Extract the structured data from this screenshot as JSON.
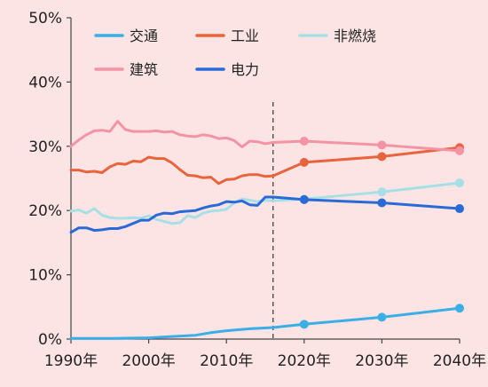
{
  "chart_data": {
    "type": "line",
    "title": "",
    "xlabel": "",
    "ylabel": "",
    "xlim": [
      1990,
      2040
    ],
    "ylim": [
      0,
      50
    ],
    "y_ticks": [
      0,
      10,
      20,
      30,
      40,
      50
    ],
    "y_tick_labels": [
      "0%",
      "10%",
      "20%",
      "30%",
      "40%",
      "50%"
    ],
    "x_ticks": [
      1990,
      2000,
      2010,
      2020,
      2030,
      2040
    ],
    "x_tick_labels": [
      "1990年",
      "2000年",
      "2010年",
      "2020年",
      "2030年",
      "2040年"
    ],
    "grid": false,
    "legend_position": "top",
    "projection_divider_x": 2016,
    "series": [
      {
        "name": "交通",
        "color": "#3aaee6",
        "historical": [
          [
            1990,
            0.1
          ],
          [
            1995,
            0.1
          ],
          [
            2000,
            0.2
          ],
          [
            2003,
            0.4
          ],
          [
            2006,
            0.6
          ],
          [
            2008,
            1.0
          ],
          [
            2010,
            1.3
          ],
          [
            2013,
            1.6
          ],
          [
            2016,
            1.8
          ]
        ],
        "projection": [
          [
            2016,
            1.8
          ],
          [
            2020,
            2.3
          ],
          [
            2030,
            3.4
          ],
          [
            2040,
            4.8
          ]
        ],
        "markers": [
          [
            2020,
            2.3
          ],
          [
            2030,
            3.4
          ],
          [
            2040,
            4.8
          ]
        ]
      },
      {
        "name": "工业",
        "color": "#e8643c",
        "historical": [
          [
            1990,
            26.3
          ],
          [
            1991,
            26.3
          ],
          [
            1992,
            26.0
          ],
          [
            1993,
            26.1
          ],
          [
            1994,
            25.9
          ],
          [
            1995,
            26.8
          ],
          [
            1996,
            27.3
          ],
          [
            1997,
            27.2
          ],
          [
            1998,
            27.7
          ],
          [
            1999,
            27.6
          ],
          [
            2000,
            28.3
          ],
          [
            2001,
            28.1
          ],
          [
            2002,
            28.1
          ],
          [
            2003,
            27.4
          ],
          [
            2004,
            26.4
          ],
          [
            2005,
            25.5
          ],
          [
            2006,
            25.4
          ],
          [
            2007,
            25.1
          ],
          [
            2008,
            25.2
          ],
          [
            2009,
            24.2
          ],
          [
            2010,
            24.8
          ],
          [
            2011,
            24.9
          ],
          [
            2012,
            25.4
          ],
          [
            2013,
            25.6
          ],
          [
            2014,
            25.6
          ],
          [
            2015,
            25.3
          ],
          [
            2016,
            25.4
          ]
        ],
        "projection": [
          [
            2016,
            25.4
          ],
          [
            2020,
            27.5
          ],
          [
            2030,
            28.4
          ],
          [
            2040,
            29.8
          ]
        ],
        "markers": [
          [
            2020,
            27.5
          ],
          [
            2030,
            28.4
          ],
          [
            2040,
            29.8
          ]
        ]
      },
      {
        "name": "非燃烧",
        "color": "#a6e0e6",
        "historical": [
          [
            1990,
            19.9
          ],
          [
            1991,
            20.1
          ],
          [
            1992,
            19.6
          ],
          [
            1993,
            20.3
          ],
          [
            1994,
            19.3
          ],
          [
            1995,
            18.9
          ],
          [
            1996,
            18.8
          ],
          [
            1997,
            18.8
          ],
          [
            1998,
            18.9
          ],
          [
            1999,
            18.8
          ],
          [
            2000,
            19.2
          ],
          [
            2001,
            18.6
          ],
          [
            2002,
            18.3
          ],
          [
            2003,
            18.0
          ],
          [
            2004,
            18.1
          ],
          [
            2005,
            19.2
          ],
          [
            2006,
            18.9
          ],
          [
            2007,
            19.6
          ],
          [
            2008,
            19.9
          ],
          [
            2009,
            20.0
          ],
          [
            2010,
            20.2
          ],
          [
            2011,
            21.2
          ],
          [
            2012,
            21.8
          ],
          [
            2013,
            21.6
          ],
          [
            2014,
            21.4
          ],
          [
            2015,
            21.6
          ],
          [
            2016,
            21.5
          ]
        ],
        "projection": [
          [
            2016,
            21.5
          ],
          [
            2020,
            21.8
          ],
          [
            2030,
            22.9
          ],
          [
            2040,
            24.3
          ]
        ],
        "markers": [
          [
            2020,
            21.8
          ],
          [
            2030,
            22.9
          ],
          [
            2040,
            24.3
          ]
        ]
      },
      {
        "name": "建筑",
        "color": "#f493a6",
        "historical": [
          [
            1990,
            30.0
          ],
          [
            1991,
            31.0
          ],
          [
            1992,
            31.8
          ],
          [
            1993,
            32.4
          ],
          [
            1994,
            32.5
          ],
          [
            1995,
            32.3
          ],
          [
            1996,
            33.9
          ],
          [
            1997,
            32.6
          ],
          [
            1998,
            32.3
          ],
          [
            1999,
            32.3
          ],
          [
            2000,
            32.3
          ],
          [
            2001,
            32.4
          ],
          [
            2002,
            32.2
          ],
          [
            2003,
            32.3
          ],
          [
            2004,
            31.8
          ],
          [
            2005,
            31.6
          ],
          [
            2006,
            31.5
          ],
          [
            2007,
            31.8
          ],
          [
            2008,
            31.6
          ],
          [
            2009,
            31.2
          ],
          [
            2010,
            31.3
          ],
          [
            2011,
            30.9
          ],
          [
            2012,
            29.9
          ],
          [
            2013,
            30.8
          ],
          [
            2014,
            30.7
          ],
          [
            2015,
            30.4
          ],
          [
            2016,
            30.6
          ]
        ],
        "projection": [
          [
            2016,
            30.6
          ],
          [
            2020,
            30.8
          ],
          [
            2030,
            30.2
          ],
          [
            2040,
            29.3
          ]
        ],
        "markers": [
          [
            2020,
            30.8
          ],
          [
            2030,
            30.2
          ],
          [
            2040,
            29.3
          ]
        ]
      },
      {
        "name": "电力",
        "color": "#2a6ad6",
        "historical": [
          [
            1990,
            16.6
          ],
          [
            1991,
            17.3
          ],
          [
            1992,
            17.3
          ],
          [
            1993,
            16.9
          ],
          [
            1994,
            17.0
          ],
          [
            1995,
            17.2
          ],
          [
            1996,
            17.2
          ],
          [
            1997,
            17.5
          ],
          [
            1998,
            18.0
          ],
          [
            1999,
            18.5
          ],
          [
            2000,
            18.5
          ],
          [
            2001,
            19.3
          ],
          [
            2002,
            19.6
          ],
          [
            2003,
            19.5
          ],
          [
            2004,
            19.8
          ],
          [
            2005,
            19.9
          ],
          [
            2006,
            20.0
          ],
          [
            2007,
            20.4
          ],
          [
            2008,
            20.7
          ],
          [
            2009,
            20.9
          ],
          [
            2010,
            21.4
          ],
          [
            2011,
            21.3
          ],
          [
            2012,
            21.5
          ],
          [
            2013,
            20.9
          ],
          [
            2014,
            20.8
          ],
          [
            2015,
            22.1
          ],
          [
            2016,
            22.1
          ]
        ],
        "projection": [
          [
            2016,
            22.1
          ],
          [
            2020,
            21.7
          ],
          [
            2030,
            21.2
          ],
          [
            2040,
            20.3
          ]
        ],
        "markers": [
          [
            2020,
            21.7
          ],
          [
            2030,
            21.2
          ],
          [
            2040,
            20.3
          ]
        ]
      }
    ]
  }
}
